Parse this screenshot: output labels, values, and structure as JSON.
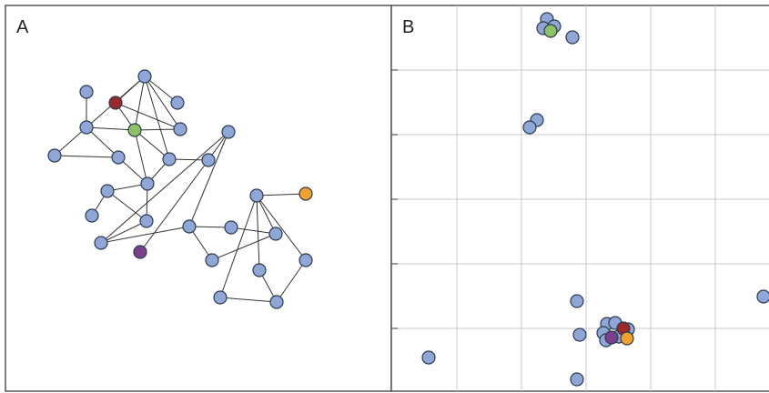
{
  "colors": {
    "node_default": "#8ea7d6",
    "node_stroke": "#2e3a4f",
    "red": "#9a2a2a",
    "green": "#8cc264",
    "orange": "#f0a030",
    "purple": "#7b3f8c",
    "edge": "#333333",
    "grid": "#c8c8c8",
    "border": "#555555"
  },
  "panel_a": {
    "label": "A",
    "nodes": [
      {
        "id": "n1",
        "color": "default"
      },
      {
        "id": "n2",
        "color": "default"
      },
      {
        "id": "n3",
        "color": "red"
      },
      {
        "id": "n4",
        "color": "default"
      },
      {
        "id": "n5",
        "color": "green"
      },
      {
        "id": "n6",
        "color": "default"
      },
      {
        "id": "n7",
        "color": "default"
      },
      {
        "id": "n8",
        "color": "default"
      },
      {
        "id": "n9",
        "color": "default"
      },
      {
        "id": "n10",
        "color": "default"
      },
      {
        "id": "n11",
        "color": "default"
      },
      {
        "id": "n12",
        "color": "default"
      },
      {
        "id": "n13",
        "color": "default"
      },
      {
        "id": "n14",
        "color": "default"
      },
      {
        "id": "n15",
        "color": "default"
      },
      {
        "id": "n16",
        "color": "default"
      },
      {
        "id": "n17",
        "color": "default"
      },
      {
        "id": "n18",
        "color": "default"
      },
      {
        "id": "n19",
        "color": "orange"
      },
      {
        "id": "n20",
        "color": "purple"
      },
      {
        "id": "n21",
        "color": "default"
      },
      {
        "id": "n22",
        "color": "default"
      },
      {
        "id": "n23",
        "color": "default"
      },
      {
        "id": "n24",
        "color": "default"
      },
      {
        "id": "n25",
        "color": "default"
      },
      {
        "id": "n26",
        "color": "default"
      },
      {
        "id": "n27",
        "color": "default"
      },
      {
        "id": "n28",
        "color": "default"
      }
    ],
    "edges": [
      [
        "n1",
        "n4"
      ],
      [
        "n1",
        "n3"
      ],
      [
        "n1",
        "n5"
      ],
      [
        "n1",
        "n6"
      ],
      [
        "n1",
        "n7"
      ],
      [
        "n1",
        "n8"
      ],
      [
        "n3",
        "n5"
      ],
      [
        "n3",
        "n6"
      ],
      [
        "n5",
        "n6"
      ],
      [
        "n5",
        "n7"
      ],
      [
        "n5",
        "n8"
      ],
      [
        "n5",
        "n11"
      ],
      [
        "n2",
        "n7"
      ],
      [
        "n7",
        "n9"
      ],
      [
        "n7",
        "n10"
      ],
      [
        "n10",
        "n9"
      ],
      [
        "n10",
        "n11"
      ],
      [
        "n11",
        "n12"
      ],
      [
        "n11",
        "n14"
      ],
      [
        "n12",
        "n13"
      ],
      [
        "n14",
        "n15"
      ],
      [
        "n15",
        "n16"
      ],
      [
        "n15",
        "n17"
      ],
      [
        "n16",
        "n17"
      ],
      [
        "n16",
        "n21"
      ],
      [
        "n16",
        "n22"
      ],
      [
        "n17",
        "n18"
      ],
      [
        "n18",
        "n20"
      ],
      [
        "n24",
        "n25"
      ],
      [
        "n24",
        "n26"
      ],
      [
        "n25",
        "n27"
      ],
      [
        "n26",
        "n27"
      ],
      [
        "n27",
        "n28"
      ],
      [
        "n22",
        "n23"
      ],
      [
        "n12",
        "n14"
      ],
      [
        "n24",
        "n19"
      ],
      [
        "n24",
        "n23"
      ],
      [
        "n23",
        "n21"
      ]
    ]
  },
  "panel_b": {
    "label": "B",
    "nodes": [
      {
        "id": "b1",
        "color": "default"
      },
      {
        "id": "b2",
        "color": "default"
      },
      {
        "id": "b3",
        "color": "default"
      },
      {
        "id": "b4",
        "color": "green"
      },
      {
        "id": "b5",
        "color": "default"
      },
      {
        "id": "b6",
        "color": "default"
      },
      {
        "id": "b7",
        "color": "default"
      },
      {
        "id": "b8",
        "color": "default"
      },
      {
        "id": "b9",
        "color": "default"
      },
      {
        "id": "b10",
        "color": "default"
      },
      {
        "id": "b11",
        "color": "default"
      },
      {
        "id": "c1",
        "color": "default"
      },
      {
        "id": "c2",
        "color": "default"
      },
      {
        "id": "c3",
        "color": "default"
      },
      {
        "id": "c4",
        "color": "default"
      },
      {
        "id": "c5",
        "color": "default"
      },
      {
        "id": "c6",
        "color": "default"
      },
      {
        "id": "c7",
        "color": "red"
      },
      {
        "id": "c8",
        "color": "purple"
      },
      {
        "id": "c9",
        "color": "orange"
      }
    ]
  }
}
